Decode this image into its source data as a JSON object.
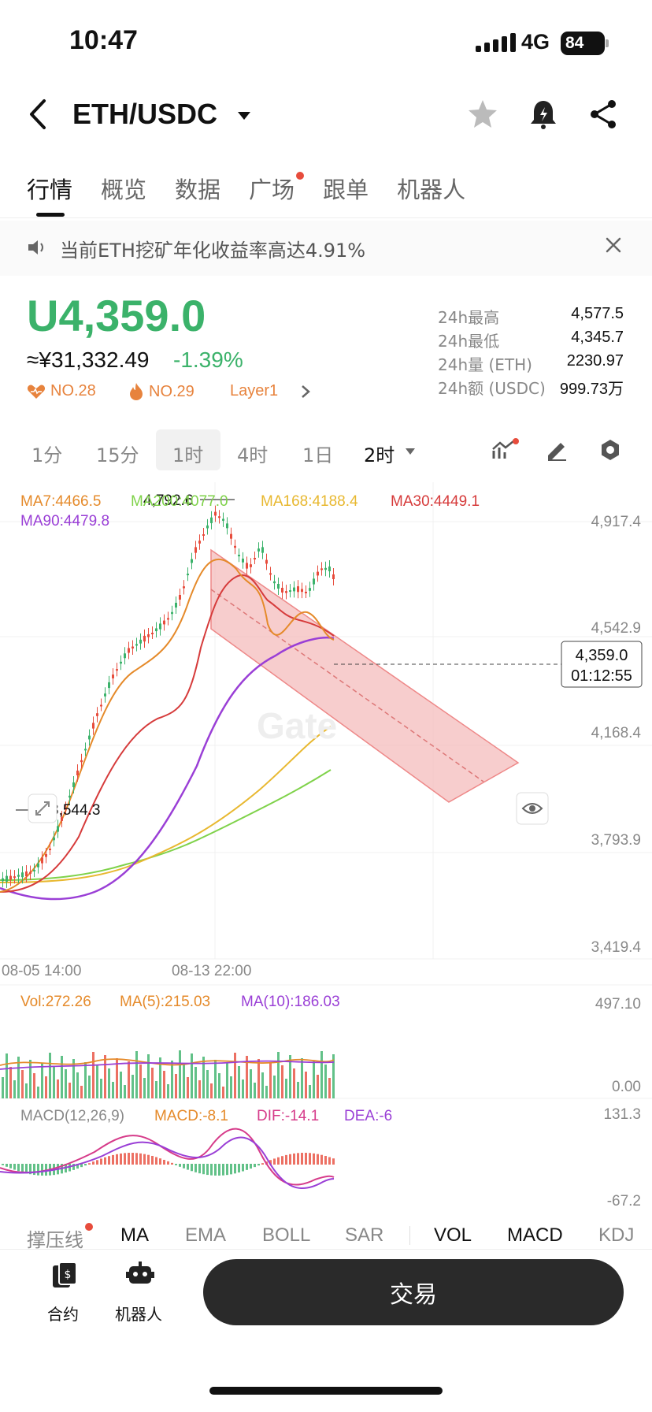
{
  "status_bar": {
    "time": "10:47",
    "network": "4G",
    "battery": "84"
  },
  "header": {
    "pair": "ETH/USDC"
  },
  "tabs": [
    {
      "label": "行情",
      "active": true
    },
    {
      "label": "概览"
    },
    {
      "label": "数据"
    },
    {
      "label": "广场",
      "dot": true
    },
    {
      "label": "跟单"
    },
    {
      "label": "机器人"
    }
  ],
  "notice": {
    "text": "当前ETH挖矿年化收益率高达4.91%"
  },
  "price": {
    "main": "U4,359.0",
    "cny": "≈¥31,332.49",
    "change": "-1.39%",
    "tags": [
      "NO.28",
      "NO.29",
      "Layer1"
    ]
  },
  "stats": [
    {
      "label": "24h最高",
      "value": "4,577.5"
    },
    {
      "label": "24h最低",
      "value": "4,345.7"
    },
    {
      "label": "24h量 (ETH)",
      "value": "2230.97"
    },
    {
      "label": "24h额 (USDC)",
      "value": "999.73万"
    }
  ],
  "periods": [
    "1分",
    "15分",
    "1时",
    "4时",
    "1日",
    "2时"
  ],
  "periods_state": {
    "highlighted": "1时",
    "selected": "2时"
  },
  "ma_legend": [
    {
      "text": "MA7:4466.5",
      "color": "#e58a2a"
    },
    {
      "text": "MA200:4077.0",
      "color": "#7fd24a"
    },
    {
      "text": "MA168:4188.4",
      "color": "#e8b830"
    },
    {
      "text": "MA30:4449.1",
      "color": "#d63b3b"
    },
    {
      "text": "MA90:4479.8",
      "color": "#9a3fd6"
    }
  ],
  "y_axis": [
    "4,917.4",
    "4,542.9",
    "4,168.4",
    "3,793.9",
    "3,419.4"
  ],
  "x_axis": [
    "08-05 14:00",
    "08-13 22:00"
  ],
  "annotations": {
    "high": "4,792.6",
    "low": "3,544.3"
  },
  "current_price_box": {
    "price": "4,359.0",
    "countdown": "01:12:55"
  },
  "volume": {
    "vol": "Vol:272.26",
    "ma5": "MA(5):215.03",
    "ma10": "MA(10):186.03",
    "axis_top": "497.10",
    "axis_bottom": "0.00"
  },
  "macd": {
    "title": "MACD(12,26,9)",
    "macd": "MACD:-8.1",
    "dif": "DIF:-14.1",
    "dea": "DEA:-6",
    "axis_top": "131.3",
    "axis_bottom": "-67.2"
  },
  "indicators": [
    "撑压线",
    "MA",
    "EMA",
    "BOLL",
    "SAR",
    "VOL",
    "MACD",
    "KDJ"
  ],
  "bottom": {
    "contract": "合约",
    "robot": "机器人",
    "trade": "交易"
  },
  "colors": {
    "up": "#3bb26a",
    "down": "#e74c3c",
    "accent": "#e7833d"
  }
}
